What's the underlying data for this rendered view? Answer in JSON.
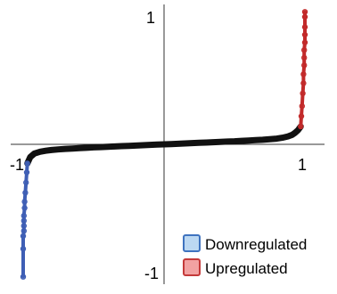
{
  "chart_data": {
    "type": "scatter",
    "xlim": [
      -1,
      1
    ],
    "ylim": [
      -1,
      1
    ],
    "grid": false,
    "legend_position": "bottom-right",
    "ticks": {
      "x_neg": "-1",
      "x_pos": "1",
      "y_pos": "1",
      "y_neg": "-1"
    },
    "legend": [
      {
        "key": "down",
        "label": "Downregulated",
        "fill": "#bcd8f2",
        "stroke": "#3f73bf"
      },
      {
        "key": "up",
        "label": "Upregulated",
        "fill": "#f2a2a2",
        "stroke": "#c43a3a"
      }
    ],
    "series": [
      {
        "key": "all",
        "color": "#111111",
        "points": [
          [
            -0.97,
            -0.15
          ],
          [
            -0.95,
            -0.1
          ],
          [
            -0.92,
            -0.072
          ],
          [
            -0.88,
            -0.058
          ],
          [
            -0.84,
            -0.05
          ],
          [
            -0.8,
            -0.045
          ],
          [
            -0.75,
            -0.04
          ],
          [
            -0.7,
            -0.036
          ],
          [
            -0.65,
            -0.033
          ],
          [
            -0.6,
            -0.03
          ],
          [
            -0.55,
            -0.027
          ],
          [
            -0.5,
            -0.024
          ],
          [
            -0.45,
            -0.022
          ],
          [
            -0.4,
            -0.019
          ],
          [
            -0.35,
            -0.017
          ],
          [
            -0.3,
            -0.014
          ],
          [
            -0.25,
            -0.012
          ],
          [
            -0.2,
            -0.0095
          ],
          [
            -0.15,
            -0.007
          ],
          [
            -0.1,
            -0.0045
          ],
          [
            -0.05,
            -0.002
          ],
          [
            0.0,
            0.0
          ],
          [
            0.05,
            0.002
          ],
          [
            0.1,
            0.0045
          ],
          [
            0.15,
            0.007
          ],
          [
            0.2,
            0.0095
          ],
          [
            0.25,
            0.012
          ],
          [
            0.3,
            0.014
          ],
          [
            0.35,
            0.017
          ],
          [
            0.4,
            0.019
          ],
          [
            0.45,
            0.022
          ],
          [
            0.5,
            0.024
          ],
          [
            0.55,
            0.027
          ],
          [
            0.6,
            0.03
          ],
          [
            0.65,
            0.033
          ],
          [
            0.7,
            0.036
          ],
          [
            0.75,
            0.04
          ],
          [
            0.8,
            0.045
          ],
          [
            0.84,
            0.052
          ],
          [
            0.88,
            0.062
          ],
          [
            0.91,
            0.075
          ],
          [
            0.93,
            0.09
          ],
          [
            0.95,
            0.11
          ],
          [
            0.97,
            0.14
          ]
        ]
      },
      {
        "key": "down",
        "color": "#3f5fb5",
        "points": [
          [
            -0.97,
            -0.15
          ],
          [
            -0.975,
            -0.22
          ],
          [
            -0.98,
            -0.3
          ],
          [
            -0.985,
            -0.38
          ],
          [
            -0.99,
            -0.45
          ],
          [
            -0.99,
            -0.5
          ],
          [
            -0.995,
            -0.56
          ],
          [
            -0.995,
            -0.6
          ],
          [
            -0.995,
            -0.64
          ],
          [
            -0.995,
            -0.68
          ],
          [
            -1.0,
            -0.72
          ],
          [
            -1.0,
            -0.82
          ],
          [
            -1.0,
            -1.04
          ]
        ]
      },
      {
        "key": "up",
        "color": "#c22a2a",
        "points": [
          [
            0.97,
            0.14
          ],
          [
            0.975,
            0.22
          ],
          [
            0.98,
            0.3
          ],
          [
            0.985,
            0.4
          ],
          [
            0.99,
            0.48
          ],
          [
            0.99,
            0.55
          ],
          [
            0.995,
            0.62
          ],
          [
            0.995,
            0.68
          ],
          [
            0.995,
            0.74
          ],
          [
            1.0,
            0.8
          ],
          [
            1.0,
            0.86
          ],
          [
            1.0,
            0.92
          ],
          [
            1.0,
            1.0
          ],
          [
            1.0,
            1.04
          ]
        ]
      }
    ]
  }
}
